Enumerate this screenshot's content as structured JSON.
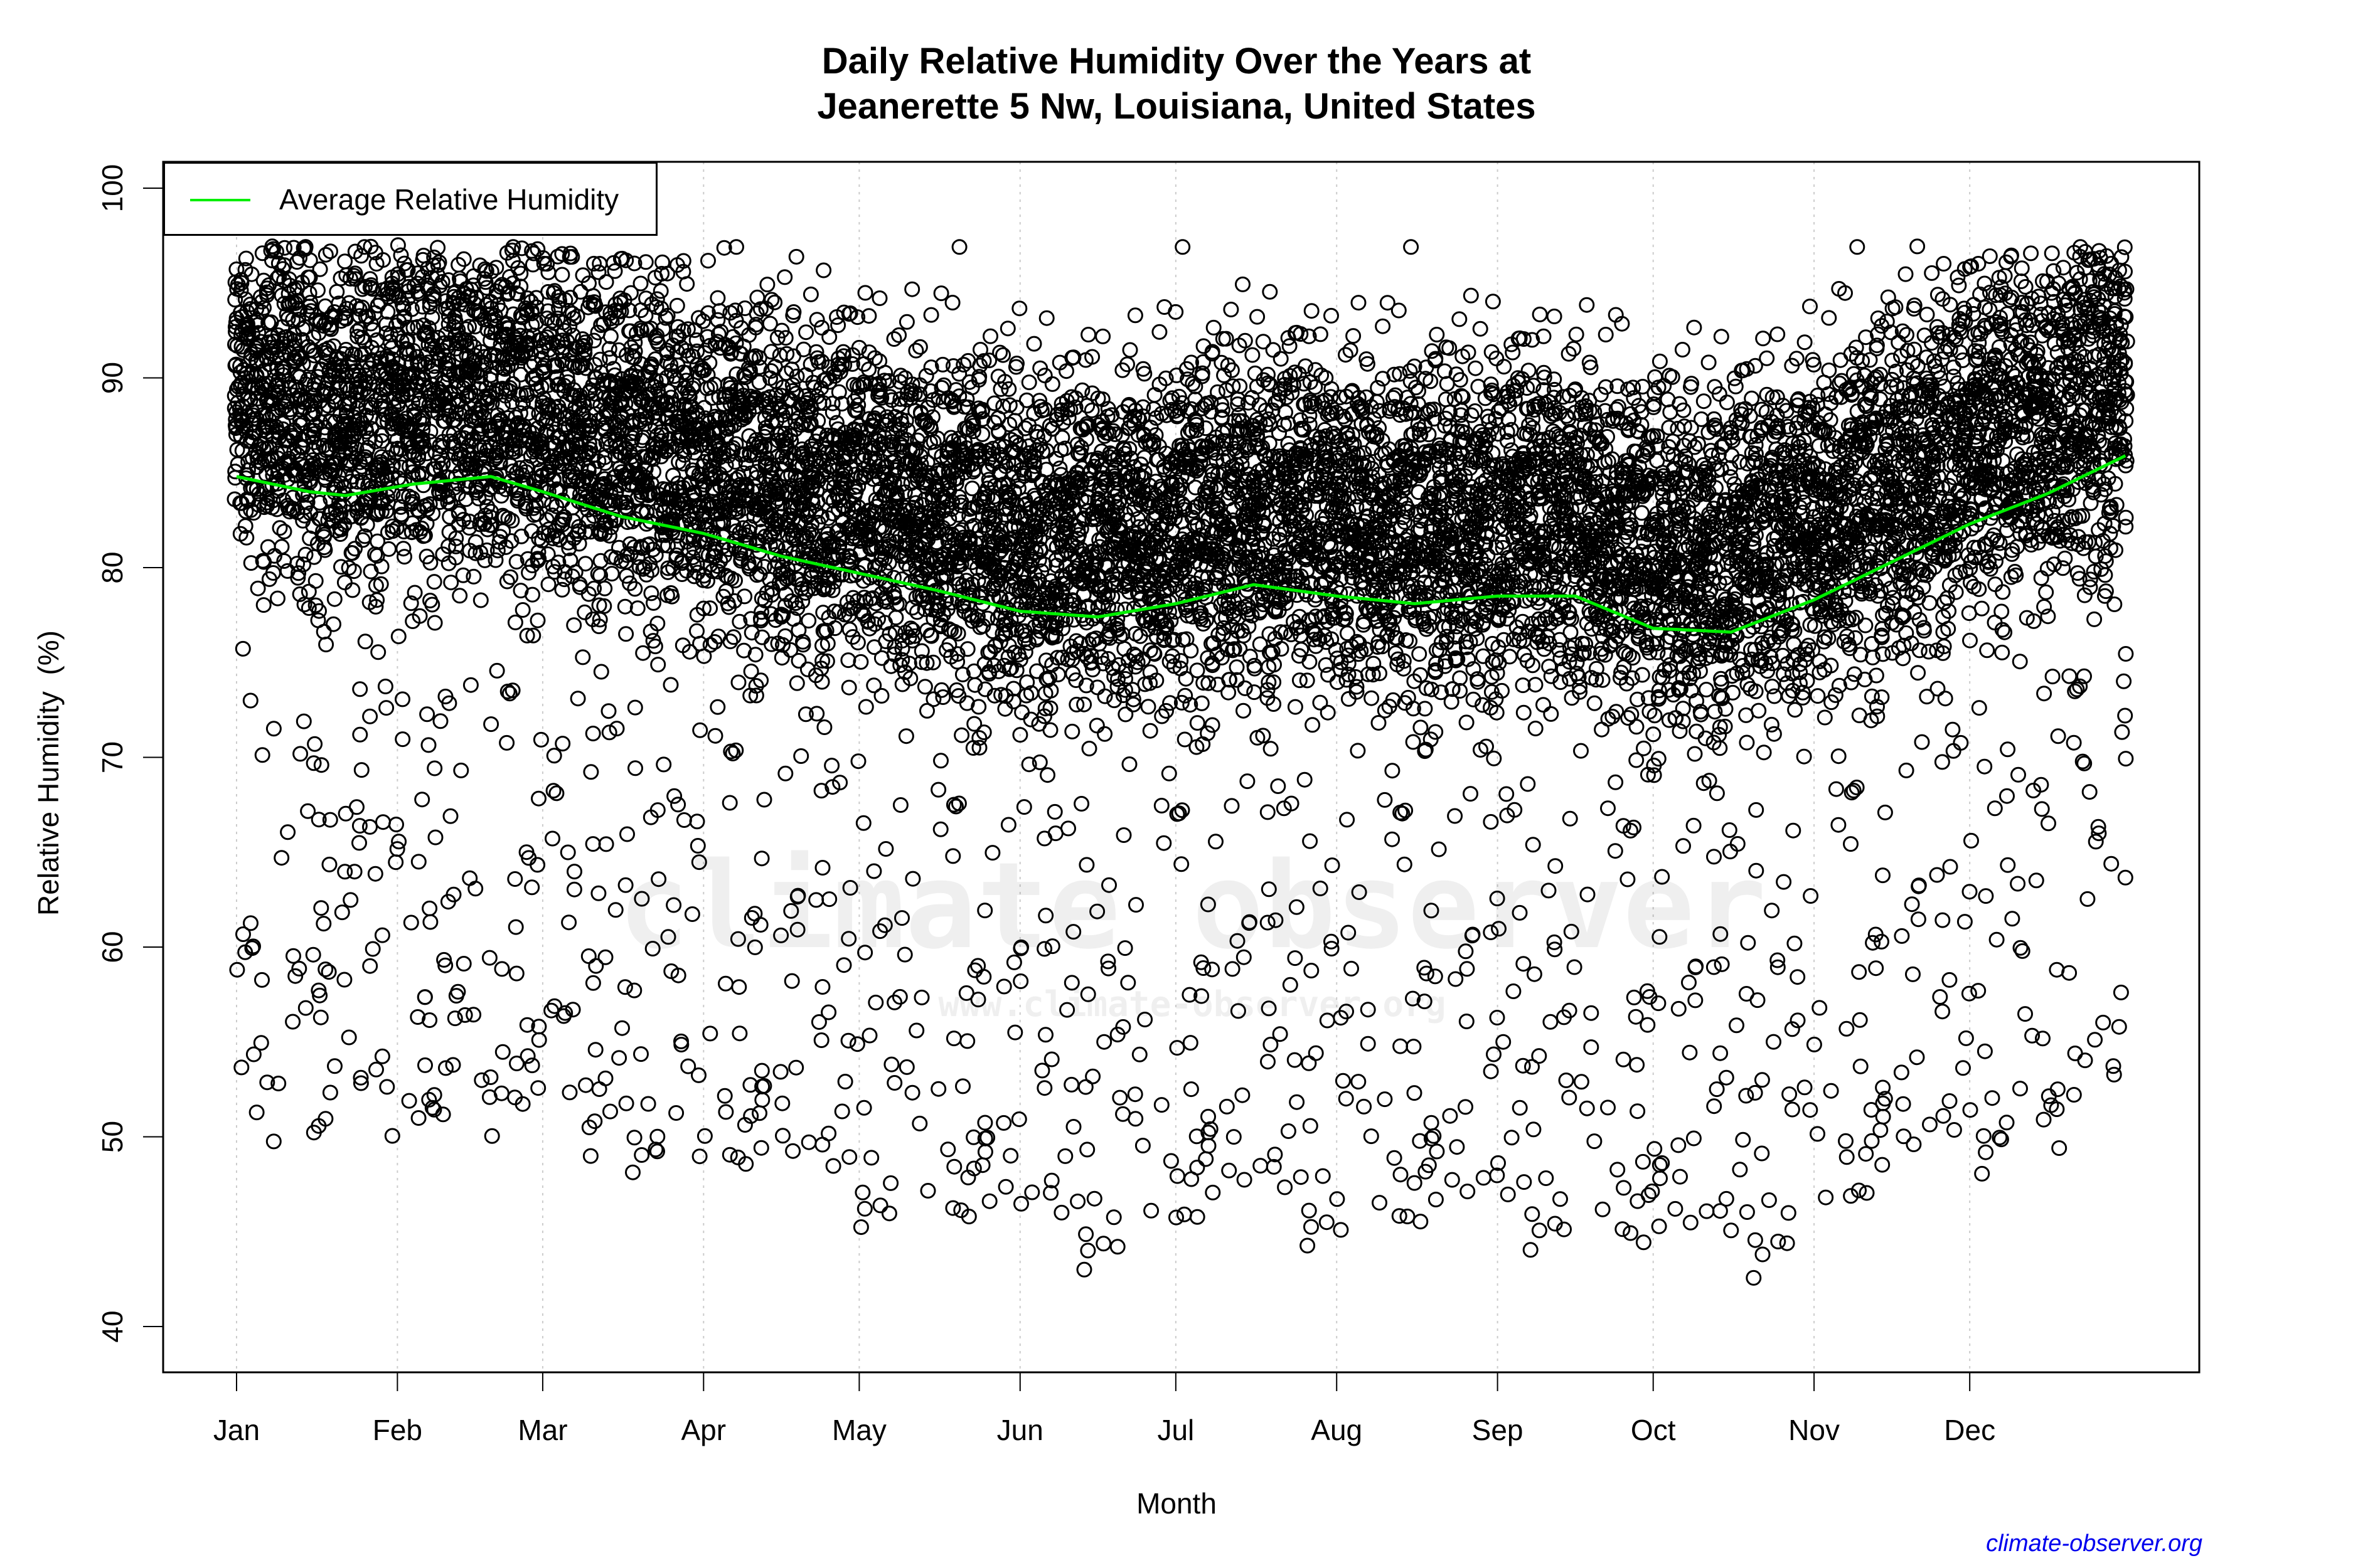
{
  "chart_data": {
    "type": "scatter",
    "title": "Daily Relative Humidity Over the Years at\nJeanerette 5 Nw, Louisiana, United States",
    "title_lines": [
      "Daily Relative Humidity Over the Years at",
      "Jeanerette 5 Nw, Louisiana, United States"
    ],
    "xlabel": "Month",
    "ylabel": "Relative Humidity  (%)",
    "ylim": [
      37,
      101
    ],
    "yticks": [
      40,
      50,
      60,
      70,
      80,
      90,
      100
    ],
    "xticks": [
      {
        "label": "Jan",
        "day": 1
      },
      {
        "label": "Feb",
        "day": 32
      },
      {
        "label": "Mar",
        "day": 60
      },
      {
        "label": "Apr",
        "day": 91
      },
      {
        "label": "May",
        "day": 121
      },
      {
        "label": "Jun",
        "day": 152
      },
      {
        "label": "Jul",
        "day": 182
      },
      {
        "label": "Aug",
        "day": 213
      },
      {
        "label": "Sep",
        "day": 244
      },
      {
        "label": "Oct",
        "day": 274
      },
      {
        "label": "Nov",
        "day": 305
      },
      {
        "label": "Dec",
        "day": 335
      }
    ],
    "grid": "vertical dotted at month starts",
    "legend": {
      "position": "top-left",
      "entries": [
        {
          "label": "Average Relative Humidity",
          "color": "#00ee00",
          "type": "line"
        }
      ]
    },
    "series": [
      {
        "name": "Daily Relative Humidity",
        "type": "scatter",
        "marker": "open-circle",
        "color": "#000000",
        "description": "Daily observations across many years; dense band ~65-97%, outliers down to ~40%",
        "min_observed": 39.8,
        "max_observed": 99.0
      },
      {
        "name": "Average Relative Humidity",
        "type": "line",
        "color": "#00ee00",
        "points": [
          {
            "day": 1,
            "value": 84.8
          },
          {
            "day": 15,
            "value": 84.0
          },
          {
            "day": 22,
            "value": 83.8
          },
          {
            "day": 35,
            "value": 84.4
          },
          {
            "day": 50,
            "value": 84.8
          },
          {
            "day": 60,
            "value": 84.0
          },
          {
            "day": 75,
            "value": 82.7
          },
          {
            "day": 91,
            "value": 81.8
          },
          {
            "day": 106,
            "value": 80.6
          },
          {
            "day": 121,
            "value": 79.7
          },
          {
            "day": 136,
            "value": 78.8
          },
          {
            "day": 152,
            "value": 77.7
          },
          {
            "day": 167,
            "value": 77.4
          },
          {
            "day": 182,
            "value": 78.1
          },
          {
            "day": 197,
            "value": 79.1
          },
          {
            "day": 213,
            "value": 78.5
          },
          {
            "day": 228,
            "value": 78.1
          },
          {
            "day": 244,
            "value": 78.5
          },
          {
            "day": 259,
            "value": 78.5
          },
          {
            "day": 274,
            "value": 76.8
          },
          {
            "day": 289,
            "value": 76.6
          },
          {
            "day": 305,
            "value": 78.3
          },
          {
            "day": 320,
            "value": 80.3
          },
          {
            "day": 335,
            "value": 82.3
          },
          {
            "day": 350,
            "value": 83.9
          },
          {
            "day": 365,
            "value": 85.9
          }
        ]
      }
    ],
    "watermark": [
      "climate observer",
      "www.climate-observer.org"
    ]
  },
  "credit": "climate-observer.org"
}
